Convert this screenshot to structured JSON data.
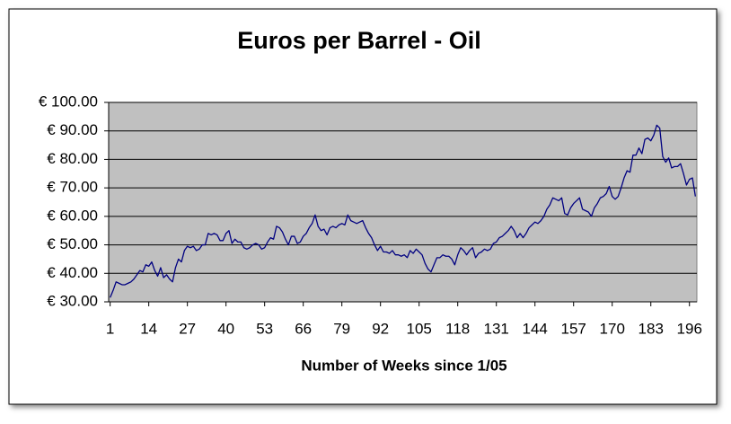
{
  "chart_data": {
    "type": "line",
    "title": "Euros per Barrel - Oil",
    "x_label": "Number of Weeks since 1/05",
    "x": [
      1,
      2,
      3,
      4,
      5,
      6,
      7,
      8,
      9,
      10,
      11,
      12,
      13,
      14,
      15,
      16,
      17,
      18,
      19,
      20,
      21,
      22,
      23,
      24,
      25,
      26,
      27,
      28,
      29,
      30,
      31,
      32,
      33,
      34,
      35,
      36,
      37,
      38,
      39,
      40,
      41,
      42,
      43,
      44,
      45,
      46,
      47,
      48,
      49,
      50,
      51,
      52,
      53,
      54,
      55,
      56,
      57,
      58,
      59,
      60,
      61,
      62,
      63,
      64,
      65,
      66,
      67,
      68,
      69,
      70,
      71,
      72,
      73,
      74,
      75,
      76,
      77,
      78,
      79,
      80,
      81,
      82,
      83,
      84,
      85,
      86,
      87,
      88,
      89,
      90,
      91,
      92,
      93,
      94,
      95,
      96,
      97,
      98,
      99,
      100,
      101,
      102,
      103,
      104,
      105,
      106,
      107,
      108,
      109,
      110,
      111,
      112,
      113,
      114,
      115,
      116,
      117,
      118,
      119,
      120,
      121,
      122,
      123,
      124,
      125,
      126,
      127,
      128,
      129,
      130,
      131,
      132,
      133,
      134,
      135,
      136,
      137,
      138,
      139,
      140,
      141,
      142,
      143,
      144,
      145,
      146,
      147,
      148,
      149,
      150,
      151,
      152,
      153,
      154,
      155,
      156,
      157,
      158,
      159,
      160,
      161,
      162,
      163,
      164,
      165,
      166,
      167,
      168,
      169,
      170,
      171,
      172,
      173,
      174,
      175,
      176,
      177,
      178,
      179,
      180,
      181,
      182,
      183,
      184,
      185,
      186,
      187,
      188,
      189,
      190,
      191,
      192,
      193,
      194,
      195,
      196,
      197,
      198
    ],
    "series": [
      {
        "color": "#000080",
        "values": [
          31.5,
          34,
          37,
          36.5,
          36,
          36,
          36.5,
          37,
          38,
          39.5,
          41,
          40.5,
          43,
          42.5,
          44,
          41,
          39,
          42,
          38.5,
          39.5,
          38,
          37,
          42,
          45,
          44,
          48,
          49.5,
          49,
          49.5,
          48,
          48.5,
          50,
          50,
          54,
          53.5,
          54,
          53.5,
          51.5,
          51.5,
          54,
          55,
          50.5,
          52,
          51,
          51,
          49,
          48.5,
          49,
          50,
          50.5,
          50,
          48.5,
          49,
          51,
          52.5,
          52,
          56.5,
          56,
          54.5,
          52,
          50,
          53,
          53,
          50.5,
          51,
          53,
          54,
          56,
          57.5,
          60.5,
          56.5,
          55,
          55.5,
          53.5,
          56,
          56.5,
          56,
          57,
          57.5,
          57,
          60.5,
          58.5,
          58,
          57.5,
          58,
          58.5,
          56,
          54,
          52.5,
          50,
          48,
          49.5,
          47.5,
          47.5,
          47,
          48,
          46.5,
          46.5,
          46,
          46.5,
          45.5,
          48,
          47,
          48.5,
          47.5,
          46.5,
          43.5,
          41.5,
          40.5,
          43,
          45.5,
          45.5,
          46.5,
          46,
          46,
          45,
          43,
          46.5,
          49,
          48,
          46.5,
          48,
          49,
          45.5,
          47,
          47.5,
          48.5,
          48,
          48.5,
          50.5,
          51,
          52.5,
          53,
          54,
          55,
          56.5,
          55,
          52.5,
          54,
          52.5,
          54,
          56,
          57,
          58,
          57.5,
          58.5,
          60,
          62.5,
          64,
          66.5,
          66,
          65.5,
          66.5,
          61,
          60.5,
          63,
          64.5,
          65.5,
          66.5,
          62.5,
          62,
          61.5,
          60,
          63,
          64.5,
          66.5,
          67,
          68,
          70.5,
          67,
          66,
          67,
          70,
          73.5,
          76,
          75.5,
          81.5,
          81.5,
          84,
          82,
          87,
          87.5,
          86.5,
          88.5,
          92,
          91,
          81,
          79,
          80.5,
          77,
          77.5,
          77.5,
          78.5,
          75,
          71,
          73,
          73.5,
          67
        ]
      }
    ],
    "xlim": [
      0.5,
      198.5
    ],
    "xticks": [
      1,
      14,
      27,
      40,
      53,
      66,
      79,
      92,
      105,
      118,
      131,
      144,
      157,
      170,
      183,
      196
    ],
    "ylim": [
      30,
      100
    ],
    "yticks": [
      {
        "value": 30,
        "label": "€ 30.00"
      },
      {
        "value": 40,
        "label": "€ 40.00"
      },
      {
        "value": 50,
        "label": "€ 50.00"
      },
      {
        "value": 60,
        "label": "€ 60.00"
      },
      {
        "value": 70,
        "label": "€ 70.00"
      },
      {
        "value": 80,
        "label": "€ 80.00"
      },
      {
        "value": 90,
        "label": "€ 90.00"
      },
      {
        "value": 100,
        "label": "€ 100.00"
      }
    ],
    "grid": true,
    "plot_background": "#c0c0c0"
  }
}
